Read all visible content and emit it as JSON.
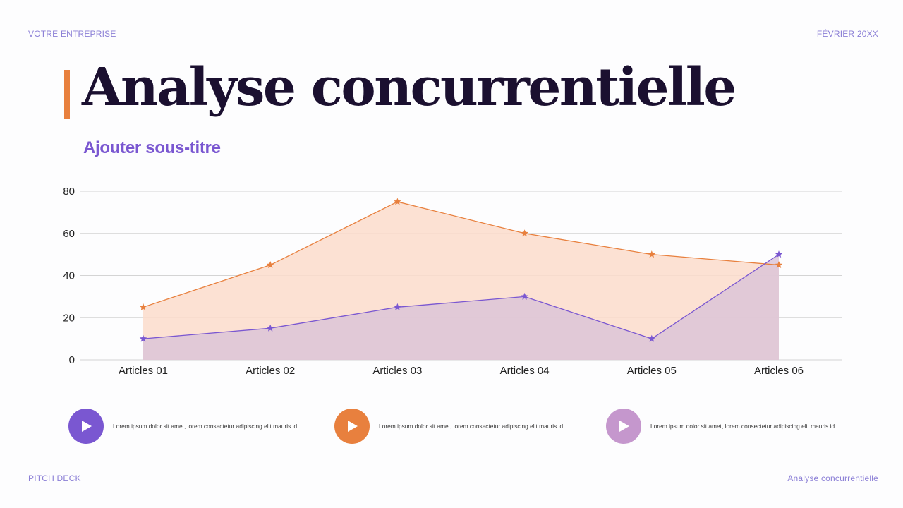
{
  "header": {
    "company": "VOTRE ENTREPRISE",
    "date": "FÉVRIER 20XX"
  },
  "footer": {
    "left": "PITCH DECK",
    "right": "Analyse concurrentielle"
  },
  "slide": {
    "title": "Analyse concurrentielle",
    "subtitle": "Ajouter sous-titre"
  },
  "colors": {
    "accent_orange": "#e8803e",
    "purple": "#7a57d1",
    "lilac": "#c597cd",
    "title_dark": "#1b1030"
  },
  "chart_data": {
    "type": "area",
    "categories": [
      "Articles 01",
      "Articles 02",
      "Articles 03",
      "Articles 04",
      "Articles 05",
      "Articles 06"
    ],
    "series": [
      {
        "values": [
          25,
          45,
          75,
          60,
          50,
          45
        ],
        "color": "#e8803e",
        "fill": "#fbdccb",
        "marker": "star"
      },
      {
        "values": [
          10,
          15,
          25,
          30,
          10,
          50
        ],
        "color": "#7a57d1",
        "fill": "#d9c3d8",
        "marker": "star"
      }
    ],
    "ylim": [
      0,
      80
    ],
    "yticks": [
      0,
      20,
      40,
      60,
      80
    ],
    "grid": true,
    "title": "",
    "xlabel": "",
    "ylabel": ""
  },
  "legend": [
    {
      "icon": "play-icon",
      "color": "#7a57d1",
      "text": "Lorem ipsum dolor sit amet, lorem consectetur adipiscing elit mauris id."
    },
    {
      "icon": "play-icon",
      "color": "#e8803e",
      "text": "Lorem ipsum dolor sit amet, lorem consectetur adipiscing elit mauris id."
    },
    {
      "icon": "play-icon",
      "color": "#c597cd",
      "text": "Lorem ipsum dolor sit amet, lorem consectetur adipiscing elit mauris id."
    }
  ]
}
